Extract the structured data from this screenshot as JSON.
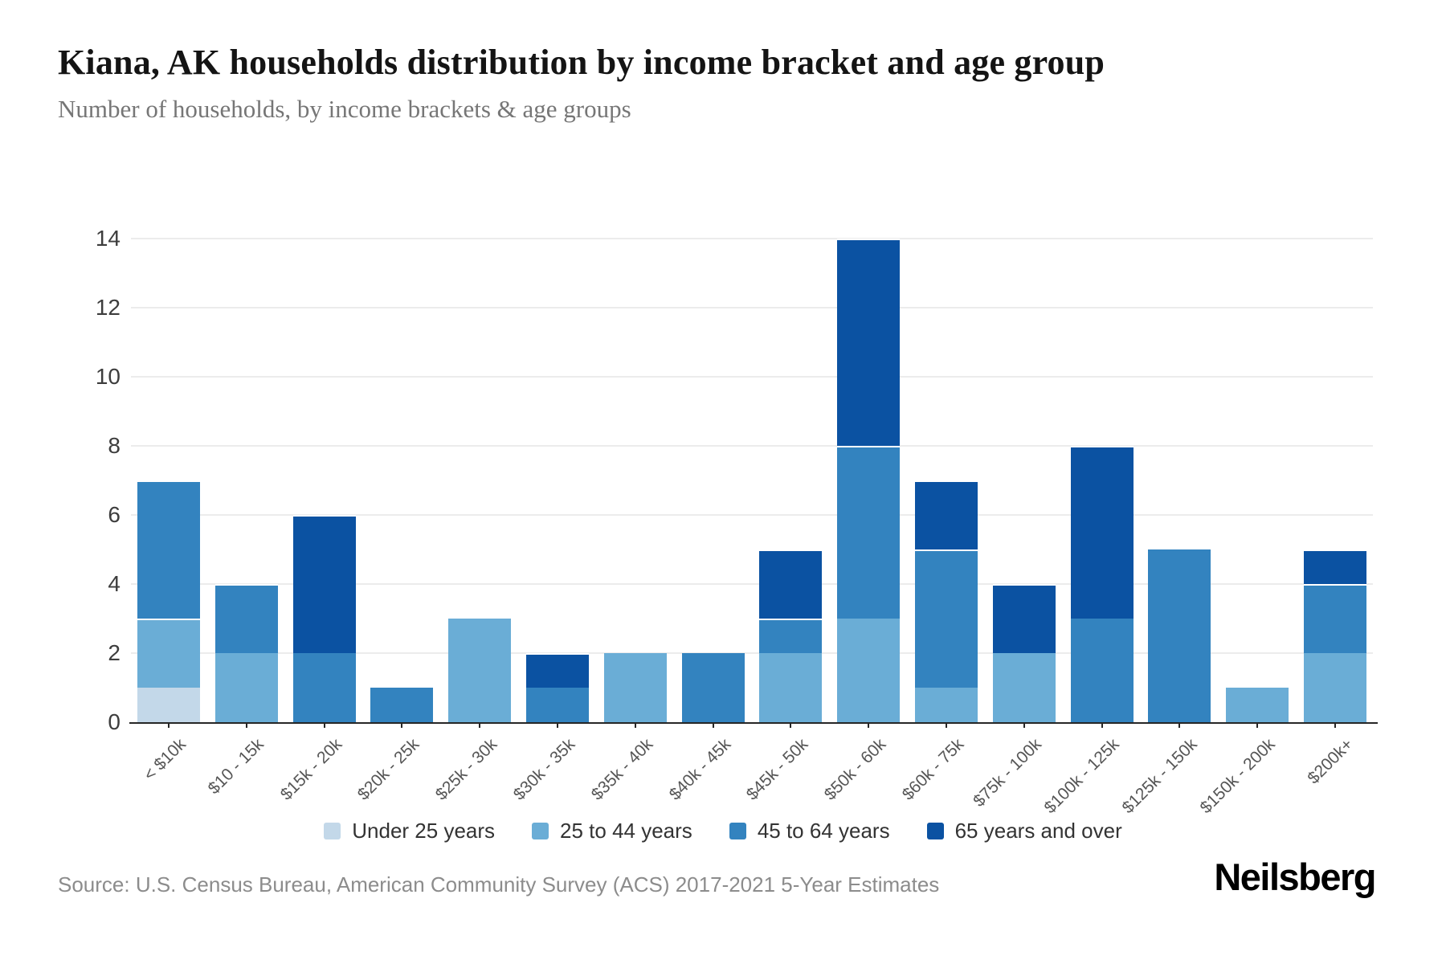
{
  "header": {
    "title": "Kiana, AK households distribution by income bracket and age group",
    "subtitle": "Number of households, by income brackets & age groups"
  },
  "chart_data": {
    "type": "bar",
    "stacked": true,
    "title": "Kiana, AK households distribution by income bracket and age group",
    "xlabel": "",
    "ylabel": "",
    "ylim": [
      0,
      14
    ],
    "yticks": [
      0,
      2,
      4,
      6,
      8,
      10,
      12,
      14
    ],
    "grid": true,
    "legend_position": "bottom",
    "categories": [
      "< $10k",
      "$10 - 15k",
      "$15k - 20k",
      "$20k - 25k",
      "$25k - 30k",
      "$30k - 35k",
      "$35k - 40k",
      "$40k - 45k",
      "$45k - 50k",
      "$50k - 60k",
      "$60k - 75k",
      "$75k - 100k",
      "$100k - 125k",
      "$125k - 150k",
      "$150k - 200k",
      "$200k+"
    ],
    "series": [
      {
        "name": "Under 25 years",
        "color": "#c3d8e9",
        "values": [
          1,
          0,
          0,
          0,
          0,
          0,
          0,
          0,
          0,
          0,
          0,
          0,
          0,
          0,
          0,
          0
        ]
      },
      {
        "name": "25 to 44 years",
        "color": "#6aadd6",
        "values": [
          2,
          2,
          0,
          0,
          3,
          0,
          2,
          0,
          2,
          3,
          1,
          2,
          0,
          0,
          1,
          2
        ]
      },
      {
        "name": "45 to 64 years",
        "color": "#3383bf",
        "values": [
          4,
          2,
          2,
          1,
          0,
          1,
          0,
          2,
          1,
          5,
          4,
          0,
          3,
          5,
          0,
          2
        ]
      },
      {
        "name": "65 years and over",
        "color": "#0b52a2",
        "values": [
          0,
          0,
          4,
          0,
          0,
          1,
          0,
          0,
          2,
          6,
          2,
          2,
          5,
          0,
          0,
          1
        ]
      }
    ],
    "bar_totals": [
      7,
      4,
      6,
      1,
      3,
      2,
      2,
      2,
      5,
      14,
      7,
      4,
      8,
      5,
      1,
      5
    ]
  },
  "footer": {
    "source": "Source: U.S. Census Bureau, American Community Survey (ACS) 2017-2021 5-Year Estimates",
    "logo": "Neilsberg"
  }
}
